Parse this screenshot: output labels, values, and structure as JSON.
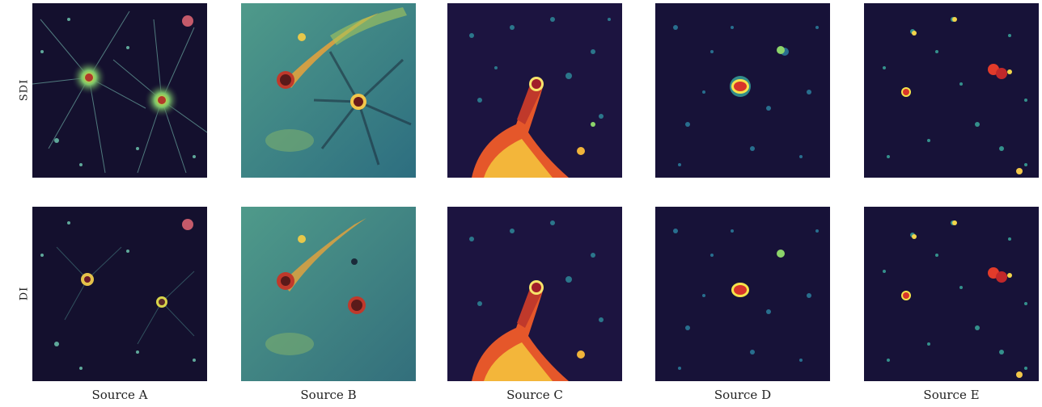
{
  "row_labels": [
    "SDI",
    "DI"
  ],
  "columns": [
    {
      "label": "Source A",
      "colors": {
        "bg": "#14102e",
        "glow": "#d9e43a"
      }
    },
    {
      "label": "Source B",
      "colors": {
        "bg": "#3f8c8a",
        "glow": "#f2a93a"
      }
    },
    {
      "label": "Source C",
      "colors": {
        "bg": "#1c1440",
        "glow": "#f08a2a"
      }
    },
    {
      "label": "Source D",
      "colors": {
        "bg": "#171238",
        "glow": "#e23b2a"
      }
    },
    {
      "label": "Source E",
      "colors": {
        "bg": "#171238",
        "glow": "#e23b2a"
      }
    }
  ]
}
